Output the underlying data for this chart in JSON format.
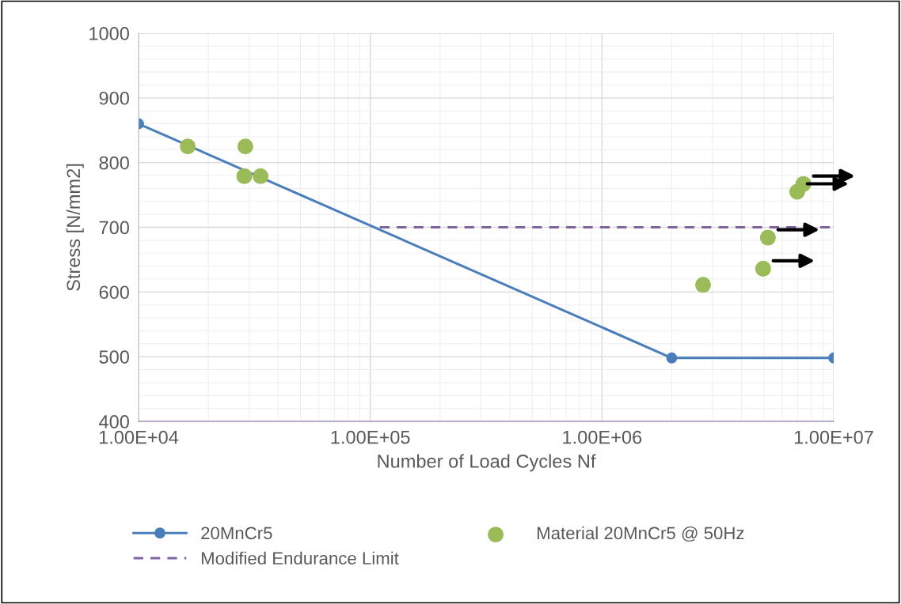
{
  "chart_data": {
    "type": "scatter",
    "xlabel": "Number of Load Cycles Nf",
    "ylabel": "Stress [N/mm2]",
    "log": "x",
    "grid": true,
    "legend": "bottom",
    "xlim": [
      10000,
      10000000
    ],
    "ylim": [
      400,
      1000
    ],
    "xticks": [
      {
        "value": 10000,
        "label": "1.00E+04"
      },
      {
        "value": 100000,
        "label": "1.00E+05"
      },
      {
        "value": 1000000,
        "label": "1.00E+06"
      },
      {
        "value": 10000000,
        "label": "1.00E+07"
      }
    ],
    "yticks": [
      400,
      500,
      600,
      700,
      800,
      900,
      1000
    ],
    "series": [
      {
        "name": "20MnCr5",
        "type": "line",
        "color": "#4a7ebb",
        "marker": "circle",
        "line_style": "solid",
        "x": [
          10000,
          2000000,
          10000000
        ],
        "values": [
          860,
          498,
          498
        ]
      },
      {
        "name": "Material 20MnCr5 @ 50Hz",
        "color": "#9bbb59",
        "marker": "circle",
        "x": [
          16300,
          28900,
          28600,
          33600,
          2730000,
          4960000,
          5200000,
          6960000,
          7400000
        ],
        "values": [
          825,
          825,
          779,
          779,
          611,
          636,
          684,
          755,
          767
        ]
      },
      {
        "name": "Modified Endurance Limit",
        "type": "line",
        "color": "#8064a2",
        "marker": "none",
        "line_style": "dashed",
        "x": [
          110000,
          10000000
        ],
        "values": [
          700,
          700
        ]
      }
    ]
  }
}
